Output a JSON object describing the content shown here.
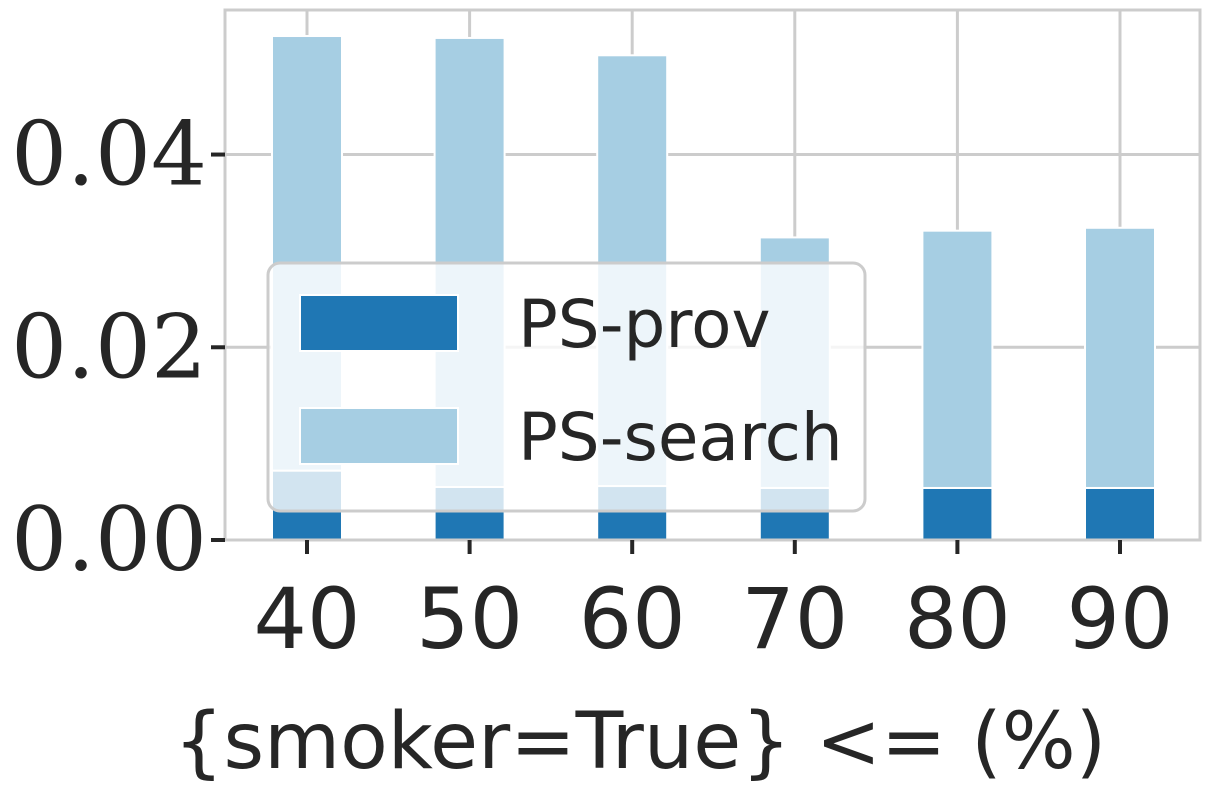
{
  "chart_data": {
    "type": "bar",
    "stacked": true,
    "categories": [
      "40",
      "50",
      "60",
      "70",
      "80",
      "90"
    ],
    "series": [
      {
        "name": "PS-prov",
        "color": "#1f77b4",
        "values": [
          0.0072,
          0.0055,
          0.0056,
          0.0054,
          0.0054,
          0.0054
        ]
      },
      {
        "name": "PS-search",
        "color": "#a6cee3",
        "values": [
          0.0451,
          0.0466,
          0.0447,
          0.026,
          0.0267,
          0.027
        ]
      }
    ],
    "title": "",
    "xlabel": "{smoker=True} <= (%)",
    "ylabel": "",
    "ylim": [
      0,
      0.055
    ],
    "yticks": [
      0.0,
      0.02,
      0.04
    ],
    "ytick_labels": [
      "0.00",
      "0.02",
      "0.04"
    ],
    "grid": true,
    "legend_position": "center-left"
  }
}
